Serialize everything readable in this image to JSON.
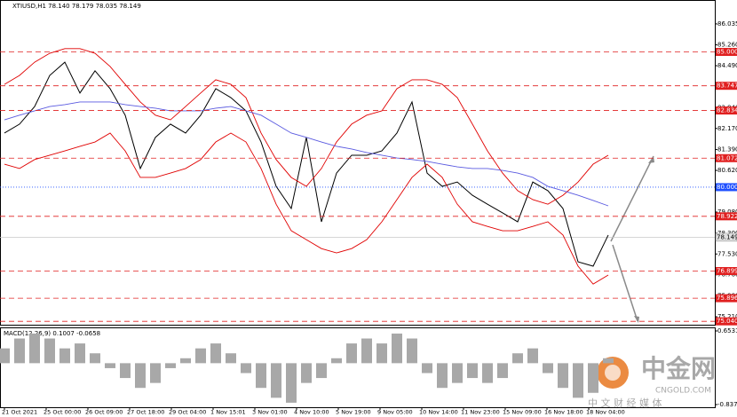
{
  "chart_data": [
    {
      "type": "line",
      "title": "XTIUSD,H1 78.140 78.179 78.035 78.149",
      "x_labels": [
        "21 Oct 2021",
        "25 Oct 00:00",
        "26 Oct 09:00",
        "27 Oct 18:00",
        "29 Oct 04:00",
        "1 Nov 15:01",
        "3 Nov 01:00",
        "4 Nov 10:00",
        "5 Nov 19:00",
        "9 Nov 05:00",
        "10 Nov 14:00",
        "11 Nov 23:00",
        "15 Nov 09:00",
        "16 Nov 18:00",
        "18 Nov 04:00"
      ],
      "series": [
        {
          "color": "#000000",
          "values": [
            82.0,
            82.33,
            82.98,
            84.13,
            84.62,
            83.48,
            84.3,
            83.64,
            82.66,
            80.69,
            81.84,
            82.33,
            82.0,
            82.66,
            83.64,
            83.31,
            82.82,
            81.67,
            80.03,
            79.21,
            81.84,
            78.72,
            80.52,
            81.18,
            81.18,
            81.34,
            82.0,
            83.15,
            80.52,
            80.03,
            80.19,
            79.7,
            79.37,
            79.05,
            78.72,
            80.19,
            79.87,
            79.21,
            77.24,
            77.08,
            78.23
          ]
        },
        {
          "color": "#e00000",
          "values": [
            83.8,
            84.13,
            84.62,
            84.95,
            85.12,
            85.12,
            84.95,
            84.46,
            83.8,
            83.15,
            82.66,
            82.49,
            82.98,
            83.48,
            83.97,
            83.8,
            83.31,
            82.0,
            81.02,
            80.36,
            80.03,
            80.69,
            81.67,
            82.33,
            82.66,
            82.82,
            83.64,
            83.97,
            83.97,
            83.8,
            83.31,
            82.33,
            81.34,
            80.52,
            79.87,
            79.54,
            79.37,
            79.7,
            80.19,
            80.85,
            81.18
          ]
        },
        {
          "color": "#e00000",
          "values": [
            80.85,
            80.69,
            81.02,
            81.18,
            81.34,
            81.51,
            81.67,
            82.0,
            81.34,
            80.36,
            80.36,
            80.52,
            80.69,
            81.02,
            81.67,
            82.0,
            81.67,
            80.69,
            79.37,
            78.39,
            78.06,
            77.73,
            77.57,
            77.73,
            78.06,
            78.72,
            79.54,
            80.36,
            80.85,
            80.36,
            79.37,
            78.72,
            78.55,
            78.39,
            78.39,
            78.55,
            78.72,
            78.23,
            77.08,
            76.42,
            76.75
          ]
        },
        {
          "color": "#5a5ae0",
          "values": [
            82.49,
            82.66,
            82.82,
            82.98,
            83.05,
            83.15,
            83.15,
            83.15,
            83.05,
            82.98,
            82.92,
            82.82,
            82.82,
            82.82,
            82.92,
            82.98,
            82.82,
            82.66,
            82.33,
            82.0,
            81.84,
            81.67,
            81.51,
            81.41,
            81.28,
            81.18,
            81.08,
            81.02,
            80.95,
            80.85,
            80.75,
            80.69,
            80.69,
            80.62,
            80.52,
            80.36,
            80.03,
            79.87,
            79.7,
            79.51,
            79.31
          ]
        }
      ],
      "ylim": [
        74.915,
        86.82
      ],
      "yticks": [
        86.035,
        {
          "value": 85.26,
          "label": "85.260"
        },
        {
          "value": 84.49,
          "label": "84.490"
        },
        {
          "value": 82.94,
          "label": "82.940"
        },
        {
          "value": 82.17,
          "label": "82.170"
        },
        {
          "value": 81.39,
          "label": "81.390"
        },
        {
          "value": 80.62,
          "label": "80.620"
        },
        {
          "value": 79.08,
          "label": "79.080"
        },
        {
          "value": 78.3,
          "label": "78.300"
        },
        {
          "value": 77.53,
          "label": "77.530"
        },
        {
          "value": 76.76,
          "label": "76.760"
        },
        {
          "value": 75.98,
          "label": "75.980"
        },
        {
          "value": 75.21,
          "label": "75.210"
        }
      ],
      "levels": [
        {
          "value": 85,
          "label": "85.000",
          "color": "#e02020"
        },
        {
          "value": 83.747,
          "label": "83.747",
          "color": "#e02020"
        },
        {
          "value": 82.834,
          "label": "82.834",
          "color": "#e02020"
        },
        {
          "value": 81.072,
          "label": "81.072",
          "color": "#e02020"
        },
        {
          "value": 80,
          "label": "80.000",
          "color": "#2050ff"
        },
        {
          "value": 78.922,
          "label": "78.922",
          "color": "#e02020"
        },
        {
          "value": 76.899,
          "label": "76.899",
          "color": "#e02020"
        },
        {
          "value": 75.896,
          "label": "75.896",
          "color": "#e02020"
        },
        {
          "value": 75.04,
          "label": "75.040",
          "color": "#e02020"
        }
      ],
      "current": {
        "value": 78.149,
        "label": "78.149"
      }
    },
    {
      "type": "bar",
      "title": "MACD(12,26,9) 0.1007 -0.0658",
      "values": [
        0.3,
        0.5,
        0.6,
        0.5,
        0.3,
        0.4,
        0.2,
        -0.1,
        -0.3,
        -0.5,
        -0.4,
        -0.1,
        0.1,
        0.3,
        0.4,
        0.2,
        -0.2,
        -0.5,
        -0.7,
        -0.8,
        -0.4,
        -0.3,
        0.1,
        0.4,
        0.5,
        0.4,
        0.6,
        0.5,
        -0.2,
        -0.5,
        -0.4,
        -0.3,
        -0.4,
        -0.3,
        0.2,
        0.3,
        -0.2,
        -0.5,
        -0.7,
        -0.6,
        0.1
      ],
      "color": "#a8a8a8",
      "ylim": [
        -0.8379,
        0.6531
      ],
      "yticks": [
        0.6531,
        -0.8379
      ]
    }
  ],
  "watermark": {
    "name": "中金网",
    "site": "CNGOLD.COM",
    "tagline": "中 文 财 经 媒 体"
  }
}
